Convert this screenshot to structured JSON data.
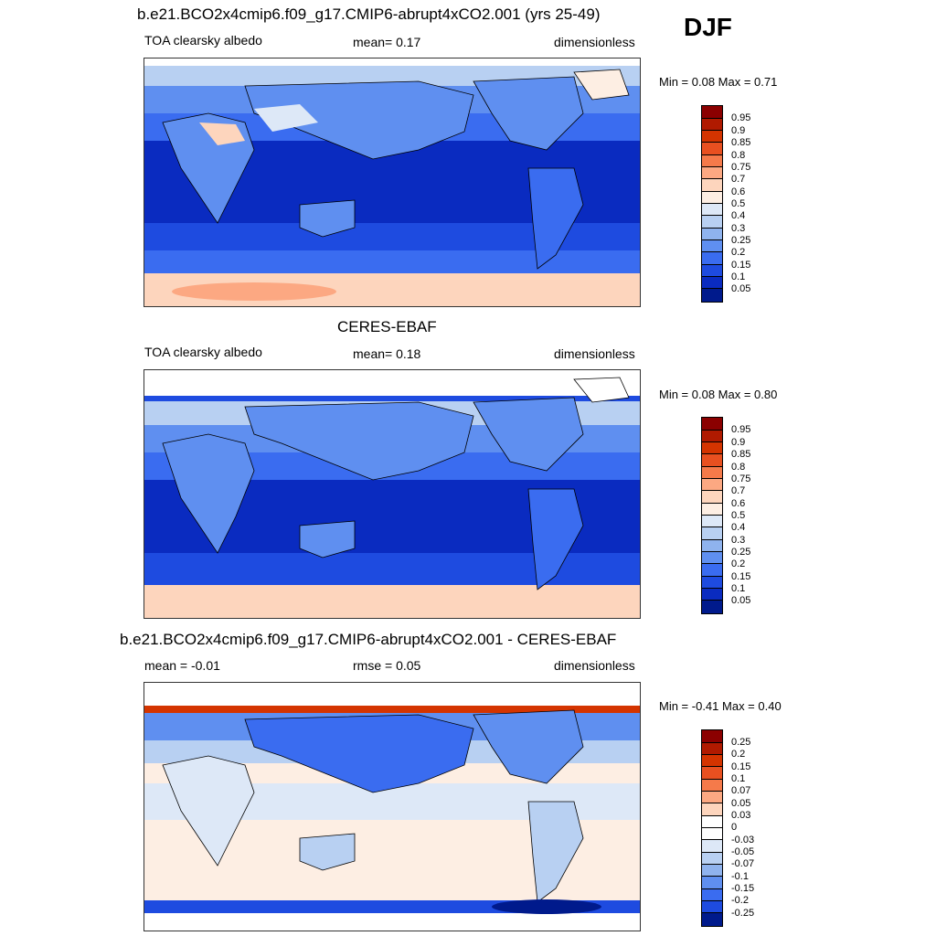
{
  "season": "DJF",
  "panels": [
    {
      "title": "b.e21.BCO2x4cmip6.f09_g17.CMIP6-abrupt4xCO2.001 (yrs 25-49)",
      "left_label": "TOA clearsky albedo",
      "center_label": "mean=   0.17",
      "right_label": "dimensionless",
      "minmax": "Min =   0.08 Max =   0.71",
      "colorbar_ticks": [
        "0.95",
        "0.9",
        "0.85",
        "0.8",
        "0.75",
        "0.7",
        "0.6",
        "0.5",
        "0.4",
        "0.3",
        "0.25",
        "0.2",
        "0.15",
        "0.1",
        "0.05"
      ]
    },
    {
      "title": "CERES-EBAF",
      "left_label": "TOA clearsky albedo",
      "center_label": "mean=   0.18",
      "right_label": "dimensionless",
      "minmax": "Min =   0.08 Max =   0.80",
      "colorbar_ticks": [
        "0.95",
        "0.9",
        "0.85",
        "0.8",
        "0.75",
        "0.7",
        "0.6",
        "0.5",
        "0.4",
        "0.3",
        "0.25",
        "0.2",
        "0.15",
        "0.1",
        "0.05"
      ]
    },
    {
      "title": "b.e21.BCO2x4cmip6.f09_g17.CMIP6-abrupt4xCO2.001 - CERES-EBAF",
      "left_label": "mean =  -0.01",
      "center_label": "rmse =   0.05",
      "right_label": "dimensionless",
      "minmax": "Min =  -0.41 Max =   0.40",
      "colorbar_ticks": [
        "0.25",
        "0.2",
        "0.15",
        "0.1",
        "0.07",
        "0.05",
        "0.03",
        "0",
        "-0.03",
        "-0.05",
        "-0.07",
        "-0.1",
        "-0.15",
        "-0.2",
        "-0.25"
      ]
    }
  ],
  "colors": {
    "abs_scale": [
      "#8b0000",
      "#b01a00",
      "#d43400",
      "#e85020",
      "#f57a4a",
      "#fca882",
      "#fdd5bd",
      "#fdeee3",
      "#dde8f7",
      "#b8d0f2",
      "#8fb3ee",
      "#5f8ff0",
      "#3a6cf0",
      "#1e4be0",
      "#0a2bc0",
      "#001a8c"
    ],
    "diff_scale": [
      "#8b0000",
      "#b01a00",
      "#d43400",
      "#e85020",
      "#f57a4a",
      "#fca882",
      "#fdd5bd",
      "#fdeee3",
      "#ffffff",
      "#dde8f7",
      "#b8d0f2",
      "#8fb3ee",
      "#5f8ff0",
      "#3a6cf0",
      "#1e4be0",
      "#0a2bc0",
      "#001a8c"
    ]
  }
}
